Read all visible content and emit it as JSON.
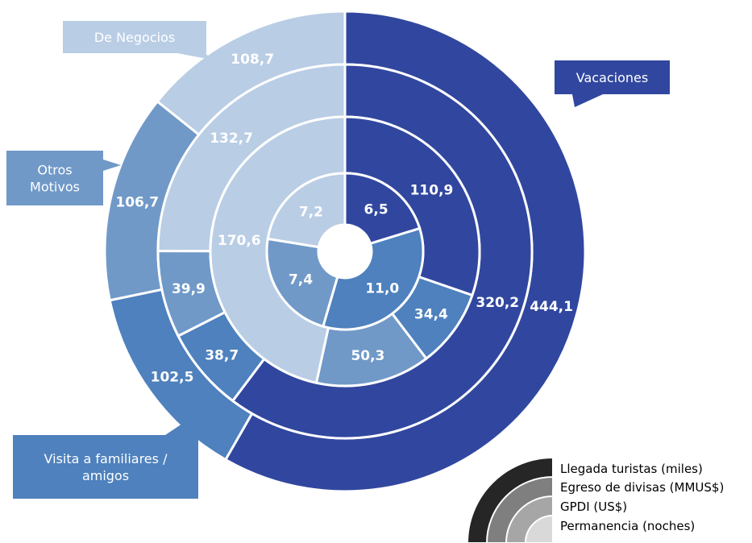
{
  "chart_data": {
    "type": "sunburst",
    "title": "",
    "categories": [
      "Vacaciones",
      "Visita a familiares / amigos",
      "Otros Motivos",
      "De Negocios"
    ],
    "category_colors": [
      "#31479F",
      "#4E81BD",
      "#7099C8",
      "#B9CDE5"
    ],
    "rings": [
      {
        "name": "Llegada turistas (miles)",
        "values": [
          "444,1",
          "102,5",
          "106,7",
          "108,7"
        ],
        "numeric": [
          444.1,
          102.5,
          106.7,
          108.7
        ]
      },
      {
        "name": "Egreso de divisas (MMUS$)",
        "values": [
          "320,2",
          "38,7",
          "39,9",
          "132,7"
        ],
        "numeric": [
          320.2,
          38.7,
          39.9,
          132.7
        ]
      },
      {
        "name": "GPDI (US$)",
        "values": [
          "110,9",
          "34,4",
          "50,3",
          "170,6"
        ],
        "numeric": [
          110.9,
          34.4,
          50.3,
          170.6
        ]
      },
      {
        "name": "Permanencia (noches)",
        "values": [
          "6,5",
          "11,0",
          "7,4",
          "7,2"
        ],
        "numeric": [
          6.5,
          11.0,
          7.4,
          7.2
        ]
      }
    ],
    "callouts": [
      {
        "category": "De Negocios",
        "lines": [
          "De Negocios"
        ]
      },
      {
        "category": "Vacaciones",
        "lines": [
          "Vacaciones"
        ]
      },
      {
        "category": "Otros Motivos",
        "lines": [
          "Otros",
          "Motivos"
        ]
      },
      {
        "category": "Visita a familiares / amigos",
        "lines": [
          "Visita a familiares /",
          "amigos"
        ]
      }
    ],
    "legend": {
      "placement": "bottom-right",
      "items": [
        "Llegada turistas (miles)",
        "Egreso de divisas (MMUS$)",
        "GPDI (US$)",
        "Permanencia (noches)"
      ],
      "colors": [
        "#262626",
        "#7F7F7F",
        "#A6A6A6",
        "#D9D9D9"
      ]
    }
  }
}
